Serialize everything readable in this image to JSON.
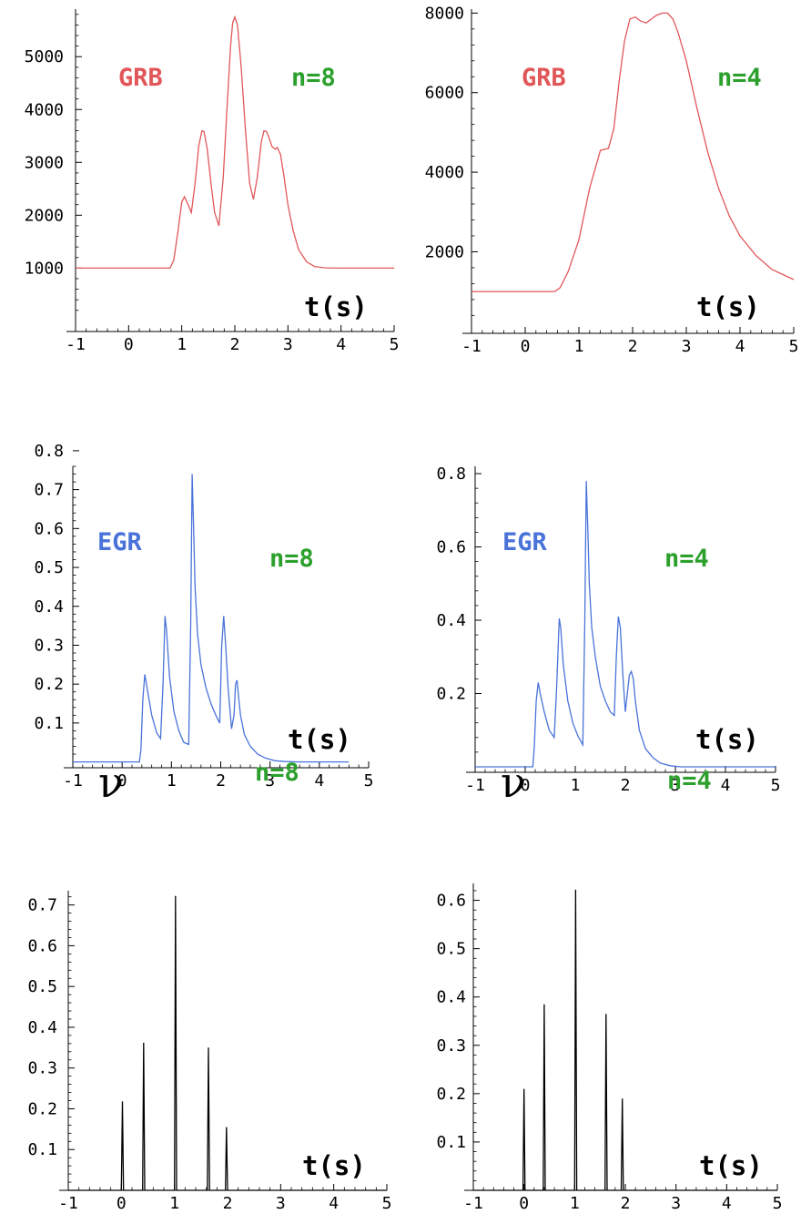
{
  "chart_data": [
    {
      "type": "line",
      "panel": "top-left",
      "annotations": [
        "GRB",
        "n=8"
      ],
      "xlabel": "t(s)",
      "colors": {
        "series": "#e15759",
        "label": "#e15759",
        "n": "#2ca02c"
      },
      "xlim": [
        -1,
        5
      ],
      "ylim": [
        -200,
        5900
      ],
      "xtick_start": -1,
      "xtick_step": 1,
      "xticks": [
        "-1",
        "0",
        "1",
        "2",
        "3",
        "4",
        "5"
      ],
      "yticks": [
        {
          "v": 1000,
          "label": "1000"
        },
        {
          "v": 2000,
          "label": "2000"
        },
        {
          "v": 3000,
          "label": "3000"
        },
        {
          "v": 4000,
          "label": "4000"
        },
        {
          "v": 5000,
          "label": "5000"
        }
      ],
      "x": [
        -1,
        0.78,
        0.85,
        0.93,
        1.0,
        1.05,
        1.12,
        1.18,
        1.25,
        1.32,
        1.38,
        1.42,
        1.48,
        1.55,
        1.62,
        1.7,
        1.78,
        1.85,
        1.92,
        1.96,
        2.0,
        2.05,
        2.12,
        2.2,
        2.28,
        2.35,
        2.42,
        2.5,
        2.55,
        2.6,
        2.65,
        2.7,
        2.76,
        2.8,
        2.86,
        2.93,
        3.0,
        3.1,
        3.2,
        3.35,
        3.5,
        3.7,
        4.0,
        5.0
      ],
      "y": [
        1000,
        1000,
        1150,
        1700,
        2250,
        2350,
        2200,
        2050,
        2600,
        3300,
        3600,
        3580,
        3250,
        2600,
        2050,
        1800,
        2700,
        4000,
        5200,
        5650,
        5750,
        5600,
        4800,
        3600,
        2600,
        2300,
        2700,
        3400,
        3600,
        3580,
        3450,
        3300,
        3250,
        3280,
        3150,
        2700,
        2200,
        1700,
        1350,
        1120,
        1030,
        1005,
        1000,
        1000
      ]
    },
    {
      "type": "line",
      "panel": "top-right",
      "annotations": [
        "GRB",
        "n=4"
      ],
      "xlabel": "t(s)",
      "colors": {
        "series": "#e15759",
        "label": "#e15759",
        "n": "#2ca02c"
      },
      "xlim": [
        -1,
        5
      ],
      "ylim": [
        -50,
        8100
      ],
      "xtick_start": -1,
      "xtick_step": 1,
      "xticks": [
        "-1",
        "0",
        "1",
        "2",
        "3",
        "4",
        "5"
      ],
      "yticks": [
        {
          "v": 2000,
          "label": "2000"
        },
        {
          "v": 4000,
          "label": "4000"
        },
        {
          "v": 6000,
          "label": "6000"
        },
        {
          "v": 8000,
          "label": "8000"
        }
      ],
      "x": [
        -1,
        0.55,
        0.65,
        0.8,
        1.0,
        1.2,
        1.4,
        1.55,
        1.65,
        1.75,
        1.85,
        1.95,
        2.05,
        2.15,
        2.25,
        2.35,
        2.45,
        2.55,
        2.65,
        2.75,
        2.85,
        3.0,
        3.2,
        3.4,
        3.6,
        3.8,
        4.0,
        4.3,
        4.6,
        5.0
      ],
      "y": [
        1000,
        1000,
        1100,
        1500,
        2300,
        3600,
        4550,
        4600,
        5100,
        6300,
        7300,
        7850,
        7900,
        7800,
        7750,
        7850,
        7950,
        8000,
        8000,
        7850,
        7500,
        6800,
        5600,
        4500,
        3600,
        2900,
        2400,
        1900,
        1550,
        1300
      ]
    },
    {
      "type": "line",
      "panel": "middle-left",
      "annotations": [
        "EGR",
        "n=8"
      ],
      "xlabel": "t(s)",
      "colors": {
        "series": "#4a73d9",
        "label": "#4a73d9",
        "n": "#2ca02c"
      },
      "xlim": [
        -1,
        5
      ],
      "ylim": [
        -0.015,
        0.76
      ],
      "xtick_start": -1,
      "xtick_step": 1,
      "xticks": [
        "-1",
        "0",
        "1",
        "2",
        "3",
        "4",
        "5"
      ],
      "yticks": [
        {
          "v": 0.1,
          "label": "0.1"
        },
        {
          "v": 0.2,
          "label": "0.2"
        },
        {
          "v": 0.3,
          "label": "0.3"
        },
        {
          "v": 0.4,
          "label": "0.4"
        },
        {
          "v": 0.5,
          "label": "0.5"
        },
        {
          "v": 0.6,
          "label": "0.6"
        },
        {
          "v": 0.7,
          "label": "0.7"
        },
        {
          "v": 0.8,
          "label": "0.8"
        }
      ],
      "x": [
        -1,
        0.35,
        0.38,
        0.42,
        0.46,
        0.52,
        0.6,
        0.7,
        0.78,
        0.83,
        0.87,
        0.9,
        0.96,
        1.05,
        1.15,
        1.25,
        1.35,
        1.39,
        1.42,
        1.45,
        1.48,
        1.53,
        1.6,
        1.7,
        1.8,
        1.9,
        1.98,
        2.02,
        2.06,
        2.1,
        2.15,
        2.22,
        2.27,
        2.3,
        2.33,
        2.36,
        2.4,
        2.48,
        2.6,
        2.75,
        2.9,
        3.1,
        3.3,
        3.6,
        4.6
      ],
      "y": [
        0,
        0,
        0.03,
        0.16,
        0.225,
        0.18,
        0.12,
        0.075,
        0.06,
        0.2,
        0.375,
        0.34,
        0.22,
        0.13,
        0.08,
        0.05,
        0.045,
        0.35,
        0.74,
        0.6,
        0.45,
        0.33,
        0.25,
        0.19,
        0.15,
        0.12,
        0.1,
        0.3,
        0.375,
        0.3,
        0.19,
        0.085,
        0.12,
        0.2,
        0.21,
        0.17,
        0.12,
        0.07,
        0.04,
        0.02,
        0.01,
        0.003,
        0.001,
        0,
        0
      ]
    },
    {
      "type": "line",
      "panel": "middle-right",
      "annotations": [
        "EGR",
        "n=4"
      ],
      "xlabel": "t(s)",
      "colors": {
        "series": "#4a73d9",
        "label": "#4a73d9",
        "n": "#2ca02c"
      },
      "xlim": [
        -1,
        5
      ],
      "ylim": [
        -0.015,
        0.82
      ],
      "xtick_start": -1,
      "xtick_step": 1,
      "xticks": [
        "-1",
        "0",
        "1",
        "2",
        "3",
        "4",
        "5"
      ],
      "yticks": [
        {
          "v": 0.2,
          "label": "0.2"
        },
        {
          "v": 0.4,
          "label": "0.4"
        },
        {
          "v": 0.6,
          "label": "0.6"
        },
        {
          "v": 0.8,
          "label": "0.8"
        }
      ],
      "x": [
        -1,
        0.15,
        0.18,
        0.22,
        0.26,
        0.3,
        0.38,
        0.48,
        0.58,
        0.63,
        0.68,
        0.71,
        0.76,
        0.85,
        0.95,
        1.05,
        1.15,
        1.19,
        1.22,
        1.25,
        1.28,
        1.33,
        1.4,
        1.5,
        1.6,
        1.7,
        1.78,
        1.82,
        1.86,
        1.9,
        1.95,
        2.0,
        2.04,
        2.08,
        2.12,
        2.16,
        2.2,
        2.28,
        2.4,
        2.55,
        2.7,
        2.9,
        3.1,
        3.5,
        5.0
      ],
      "y": [
        0,
        0,
        0.05,
        0.18,
        0.23,
        0.2,
        0.15,
        0.1,
        0.08,
        0.22,
        0.405,
        0.38,
        0.28,
        0.18,
        0.12,
        0.085,
        0.06,
        0.4,
        0.78,
        0.65,
        0.5,
        0.38,
        0.3,
        0.22,
        0.18,
        0.15,
        0.14,
        0.3,
        0.41,
        0.38,
        0.25,
        0.15,
        0.2,
        0.25,
        0.26,
        0.24,
        0.18,
        0.1,
        0.05,
        0.025,
        0.01,
        0.003,
        0,
        0,
        0
      ]
    },
    {
      "type": "line",
      "panel": "bottom-left",
      "annotations": [
        "ν",
        "n=8"
      ],
      "xlabel": "t(s)",
      "colors": {
        "series": "#000000",
        "label": "#000000",
        "n": "#2ca02c"
      },
      "xlim": [
        -1,
        5
      ],
      "ylim": [
        0,
        0.735
      ],
      "xtick_start": -1,
      "xtick_step": 1,
      "xticks": [
        "-1",
        "0",
        "1",
        "2",
        "3",
        "4",
        "5"
      ],
      "yticks": [
        {
          "v": 0.1,
          "label": "0.1"
        },
        {
          "v": 0.2,
          "label": "0.2"
        },
        {
          "v": 0.3,
          "label": "0.3"
        },
        {
          "v": 0.4,
          "label": "0.4"
        },
        {
          "v": 0.5,
          "label": "0.5"
        },
        {
          "v": 0.6,
          "label": "0.6"
        },
        {
          "v": 0.7,
          "label": "0.7"
        }
      ],
      "x": [
        -1,
        0.0,
        0.02,
        0.04,
        0.4,
        0.42,
        0.44,
        1.0,
        1.02,
        1.04,
        1.62,
        1.64,
        1.66,
        1.96,
        1.98,
        2.0,
        5.0
      ],
      "y": [
        0,
        0,
        0.218,
        0,
        0,
        0.362,
        0,
        0,
        0.722,
        0,
        0,
        0.35,
        0,
        0,
        0.155,
        0,
        0
      ]
    },
    {
      "type": "line",
      "panel": "bottom-right",
      "annotations": [
        "ν",
        "n=4"
      ],
      "xlabel": "t(s)",
      "colors": {
        "series": "#000000",
        "label": "#000000",
        "n": "#2ca02c"
      },
      "xlim": [
        -1,
        5
      ],
      "ylim": [
        0,
        0.635
      ],
      "xtick_start": -1,
      "xtick_step": 1,
      "xticks": [
        "-1",
        "0",
        "1",
        "2",
        "3",
        "4",
        "5"
      ],
      "yticks": [
        {
          "v": 0.1,
          "label": "0.1"
        },
        {
          "v": 0.2,
          "label": "0.2"
        },
        {
          "v": 0.3,
          "label": "0.3"
        },
        {
          "v": 0.4,
          "label": "0.4"
        },
        {
          "v": 0.5,
          "label": "0.5"
        },
        {
          "v": 0.6,
          "label": "0.6"
        }
      ],
      "x": [
        -1,
        -0.02,
        0.0,
        0.02,
        0.38,
        0.4,
        0.42,
        1.0,
        1.02,
        1.04,
        1.6,
        1.62,
        1.64,
        1.92,
        1.94,
        1.96,
        5.0
      ],
      "y": [
        0,
        0,
        0.21,
        0,
        0,
        0.385,
        0,
        0,
        0.622,
        0,
        0,
        0.365,
        0,
        0,
        0.19,
        0,
        0
      ]
    }
  ]
}
